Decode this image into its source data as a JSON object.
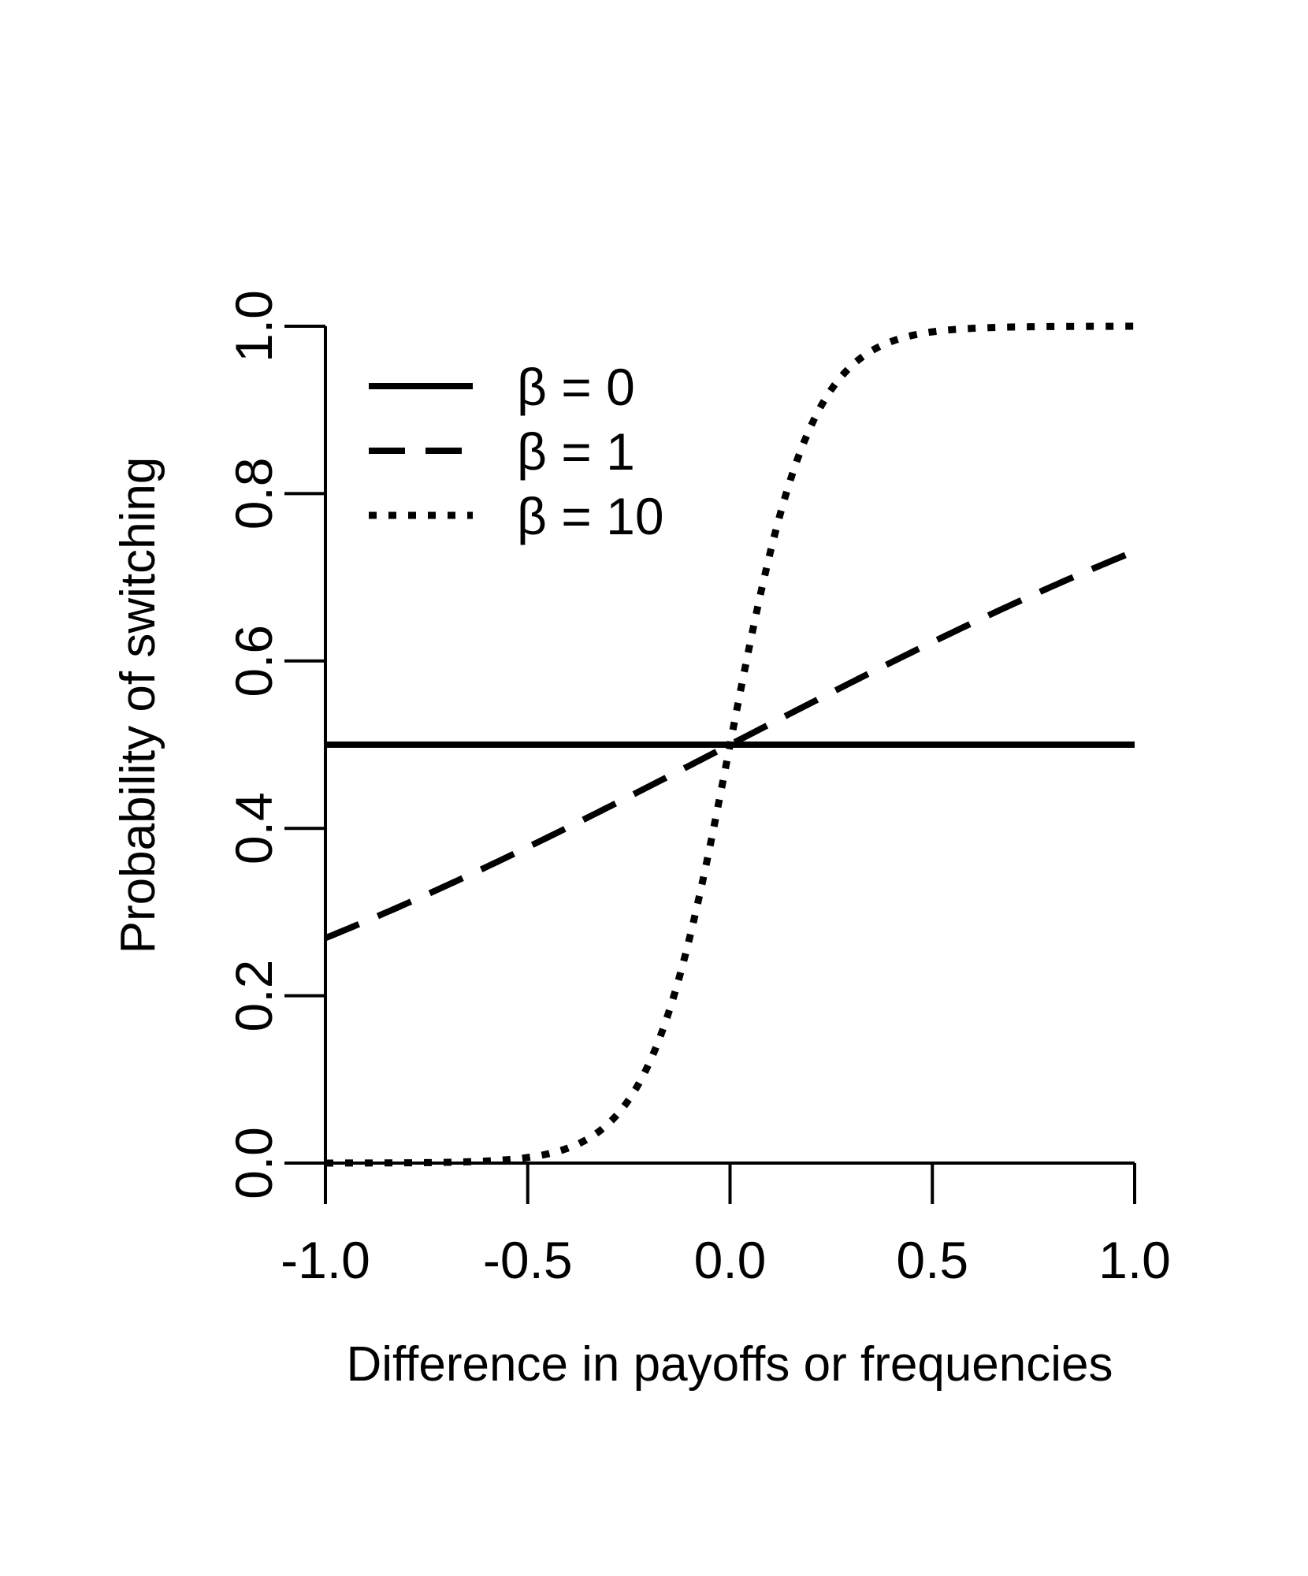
{
  "chart_data": {
    "type": "line",
    "xlabel": "Difference in payoffs or frequencies",
    "ylabel": "Probability of switching",
    "xlim": [
      -1.0,
      1.0
    ],
    "ylim": [
      0.0,
      1.0
    ],
    "x_ticks": [
      "-1.0",
      "-0.5",
      "0.0",
      "0.5",
      "1.0"
    ],
    "y_ticks": [
      "0.0",
      "0.2",
      "0.4",
      "0.6",
      "0.8",
      "1.0"
    ],
    "grid": false,
    "legend_position": "top-left",
    "series": [
      {
        "name": "β = 0",
        "beta": 0,
        "line_style": "solid",
        "color": "#000000",
        "x": [
          -1.0,
          -0.5,
          0.0,
          0.5,
          1.0
        ],
        "values": [
          0.5,
          0.5,
          0.5,
          0.5,
          0.5
        ]
      },
      {
        "name": "β = 1",
        "beta": 1,
        "line_style": "dashed",
        "color": "#000000",
        "x": [
          -1.0,
          -0.75,
          -0.5,
          -0.25,
          0.0,
          0.25,
          0.5,
          0.75,
          1.0
        ],
        "values": [
          0.269,
          0.321,
          0.378,
          0.438,
          0.5,
          0.562,
          0.622,
          0.679,
          0.731
        ]
      },
      {
        "name": "β = 10",
        "beta": 10,
        "line_style": "dotted",
        "color": "#000000",
        "x": [
          -1.0,
          -0.9,
          -0.8,
          -0.7,
          -0.6,
          -0.5,
          -0.4,
          -0.3,
          -0.2,
          -0.1,
          0.0,
          0.1,
          0.2,
          0.3,
          0.4,
          0.5,
          0.6,
          0.7,
          0.8,
          0.9,
          1.0
        ],
        "values": [
          5e-05,
          0.00012,
          0.00034,
          0.0009,
          0.0025,
          0.0067,
          0.018,
          0.047,
          0.119,
          0.269,
          0.5,
          0.731,
          0.881,
          0.953,
          0.982,
          0.9933,
          0.9975,
          0.9991,
          0.99966,
          0.99988,
          0.99995
        ]
      }
    ]
  }
}
